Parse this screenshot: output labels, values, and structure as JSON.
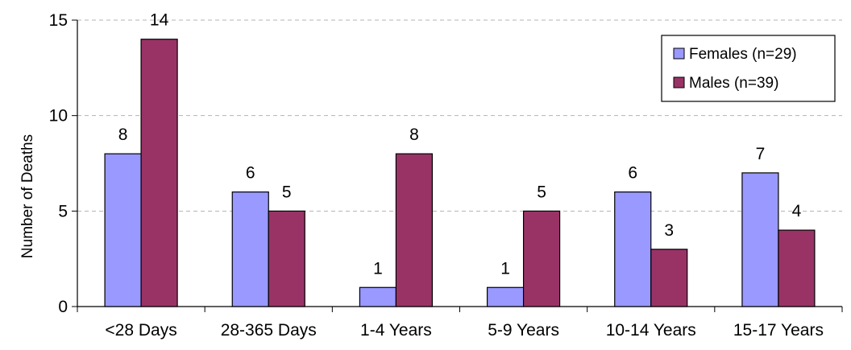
{
  "chart_data": {
    "type": "bar",
    "title": "",
    "xlabel": "",
    "ylabel": "Number of Deaths",
    "ylim": [
      0,
      15
    ],
    "yticks": [
      0,
      5,
      10,
      15
    ],
    "grid": "horizontal dashed",
    "legend_position": "top-right",
    "categories": [
      "<28 Days",
      "28-365 Days",
      "1-4 Years",
      "5-9 Years",
      "10-14 Years",
      "15-17 Years"
    ],
    "series": [
      {
        "name": "Females (n=29)",
        "color": "#9999ff",
        "values": [
          8,
          6,
          1,
          1,
          6,
          7
        ]
      },
      {
        "name": "Males (n=39)",
        "color": "#993366",
        "values": [
          14,
          5,
          8,
          5,
          3,
          4
        ]
      }
    ]
  }
}
